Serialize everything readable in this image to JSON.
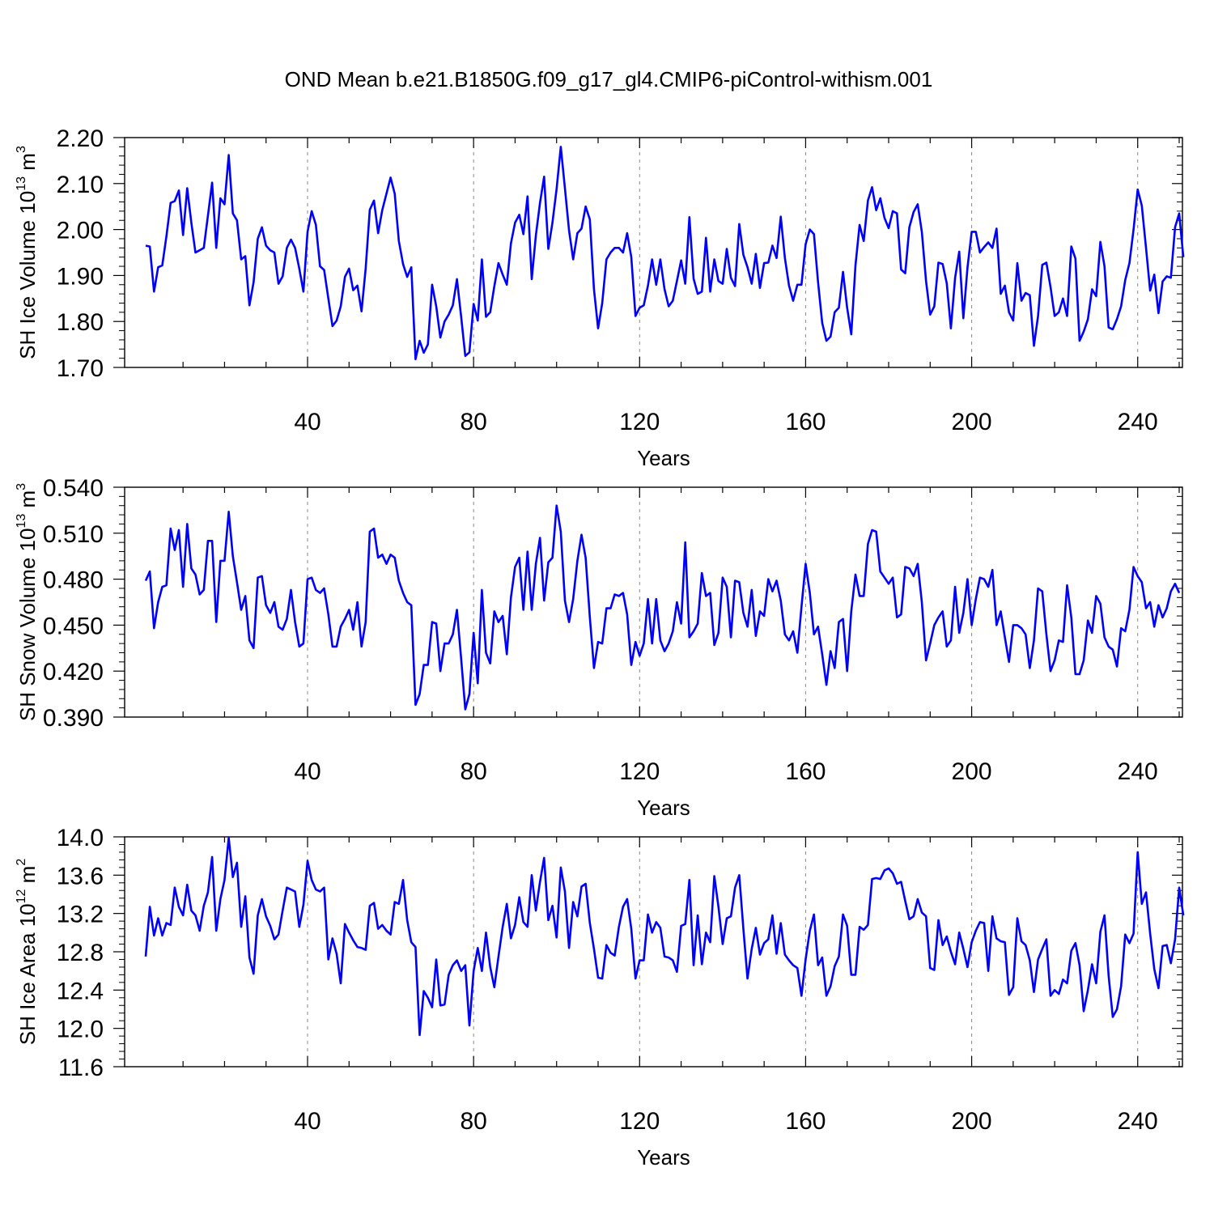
{
  "title": "OND Mean b.e21.B1850G.f09_g17_gl4.CMIP6-piControl-withism.001",
  "colors": {
    "series": "#0000ff",
    "axis": "#000000",
    "grid": "#888888"
  },
  "chart_data": [
    {
      "type": "line",
      "xlabel": "Years",
      "ylabel": {
        "base": "SH Ice Volume 10",
        "exp": "13",
        "unit": " m",
        "unit_exp": "3"
      },
      "xlim": [
        1,
        250
      ],
      "ylim": [
        1.7,
        2.2
      ],
      "xticks": [
        40,
        80,
        120,
        160,
        200,
        240
      ],
      "xtick_labels": [
        "40",
        "80",
        "120",
        "160",
        "200",
        "240"
      ],
      "yticks": [
        1.7,
        1.8,
        1.9,
        2.0,
        2.1,
        2.2
      ],
      "ytick_labels": [
        "1.70",
        "1.80",
        "1.90",
        "2.00",
        "2.10",
        "2.20"
      ],
      "grid_x": [
        40,
        80,
        120,
        160,
        200,
        240
      ],
      "series": [
        {
          "name": "SH Ice Volume",
          "values": [
            1.965,
            1.963,
            1.865,
            1.918,
            1.922,
            1.985,
            2.058,
            2.062,
            2.085,
            1.988,
            2.09,
            2.015,
            1.95,
            1.955,
            1.96,
            2.03,
            2.102,
            1.96,
            2.068,
            2.055,
            2.162,
            2.035,
            2.02,
            1.935,
            1.942,
            1.835,
            1.885,
            1.98,
            2.005,
            1.965,
            1.955,
            1.95,
            1.882,
            1.898,
            1.96,
            1.978,
            1.96,
            1.915,
            1.865,
            1.995,
            2.04,
            2.01,
            1.92,
            1.912,
            1.85,
            1.79,
            1.802,
            1.833,
            1.897,
            1.915,
            1.868,
            1.878,
            1.822,
            1.915,
            2.043,
            2.063,
            1.992,
            2.042,
            2.078,
            2.113,
            2.078,
            1.975,
            1.925,
            1.897,
            1.918,
            1.718,
            1.758,
            1.732,
            1.75,
            1.88,
            1.833,
            1.765,
            1.8,
            1.815,
            1.835,
            1.892,
            1.81,
            1.725,
            1.733,
            1.838,
            1.802,
            1.935,
            1.81,
            1.82,
            1.877,
            1.927,
            1.902,
            1.88,
            1.97,
            2.015,
            2.032,
            1.99,
            2.072,
            1.892,
            1.987,
            2.058,
            2.115,
            1.958,
            2.015,
            2.088,
            2.18,
            2.09,
            1.998,
            1.935,
            1.992,
            2.002,
            2.05,
            2.022,
            1.87,
            1.785,
            1.84,
            1.935,
            1.95,
            1.96,
            1.96,
            1.95,
            1.992,
            1.94,
            1.812,
            1.83,
            1.835,
            1.878,
            1.935,
            1.88,
            1.935,
            1.87,
            1.833,
            1.845,
            1.888,
            1.933,
            1.882,
            2.027,
            1.893,
            1.86,
            1.865,
            1.982,
            1.865,
            1.935,
            1.888,
            1.882,
            1.958,
            1.895,
            1.877,
            2.012,
            1.945,
            1.918,
            1.882,
            1.947,
            1.873,
            1.927,
            1.928,
            1.965,
            1.938,
            2.028,
            1.938,
            1.878,
            1.845,
            1.88,
            1.88,
            1.968,
            2.0,
            1.99,
            1.885,
            1.797,
            1.758,
            1.767,
            1.82,
            1.83,
            1.908,
            1.83,
            1.772,
            1.922,
            2.01,
            1.975,
            2.063,
            2.092,
            2.042,
            2.068,
            2.025,
            2.003,
            2.04,
            2.035,
            1.913,
            1.905,
            2.005,
            2.038,
            2.055,
            1.995,
            1.888,
            1.815,
            1.833,
            1.928,
            1.925,
            1.883,
            1.785,
            1.895,
            1.952,
            1.807,
            1.917,
            1.995,
            1.995,
            1.95,
            1.962,
            1.972,
            1.96,
            2.002,
            1.86,
            1.878,
            1.82,
            1.802,
            1.927,
            1.845,
            1.862,
            1.857,
            1.747,
            1.812,
            1.923,
            1.928,
            1.875,
            1.812,
            1.82,
            1.85,
            1.812,
            1.963,
            1.937,
            1.758,
            1.778,
            1.805,
            1.87,
            1.855,
            1.973,
            1.92,
            1.787,
            1.783,
            1.805,
            1.833,
            1.89,
            1.927,
            2.0,
            2.087,
            2.052,
            1.96,
            1.867,
            1.902,
            1.818,
            1.887,
            1.898,
            1.895,
            2.005,
            2.035,
            1.94
          ]
        }
      ]
    },
    {
      "type": "line",
      "xlabel": "Years",
      "ylabel": {
        "base": "SH Snow Volume 10",
        "exp": "13",
        "unit": " m",
        "unit_exp": "3"
      },
      "xlim": [
        1,
        250
      ],
      "ylim": [
        0.39,
        0.54
      ],
      "xticks": [
        40,
        80,
        120,
        160,
        200,
        240
      ],
      "xtick_labels": [
        "40",
        "80",
        "120",
        "160",
        "200",
        "240"
      ],
      "yticks": [
        0.39,
        0.42,
        0.45,
        0.48,
        0.51,
        0.54
      ],
      "ytick_labels": [
        "0.390",
        "0.420",
        "0.450",
        "0.480",
        "0.510",
        "0.540"
      ],
      "grid_x": [
        40,
        80,
        120,
        160,
        200,
        240
      ],
      "series": [
        {
          "name": "SH Snow Volume",
          "values": [
            0.479,
            0.485,
            0.448,
            0.465,
            0.475,
            0.476,
            0.513,
            0.499,
            0.512,
            0.475,
            0.516,
            0.487,
            0.483,
            0.47,
            0.473,
            0.505,
            0.505,
            0.452,
            0.492,
            0.492,
            0.524,
            0.495,
            0.478,
            0.46,
            0.469,
            0.44,
            0.435,
            0.481,
            0.482,
            0.463,
            0.458,
            0.465,
            0.449,
            0.447,
            0.454,
            0.473,
            0.452,
            0.436,
            0.438,
            0.48,
            0.481,
            0.473,
            0.471,
            0.474,
            0.457,
            0.436,
            0.436,
            0.449,
            0.454,
            0.46,
            0.447,
            0.465,
            0.436,
            0.452,
            0.511,
            0.513,
            0.494,
            0.496,
            0.49,
            0.496,
            0.494,
            0.479,
            0.471,
            0.465,
            0.463,
            0.398,
            0.405,
            0.424,
            0.424,
            0.452,
            0.451,
            0.42,
            0.438,
            0.438,
            0.444,
            0.46,
            0.428,
            0.395,
            0.405,
            0.445,
            0.412,
            0.473,
            0.432,
            0.425,
            0.459,
            0.452,
            0.456,
            0.431,
            0.468,
            0.488,
            0.494,
            0.46,
            0.498,
            0.46,
            0.49,
            0.507,
            0.466,
            0.491,
            0.494,
            0.528,
            0.511,
            0.466,
            0.452,
            0.467,
            0.492,
            0.509,
            0.494,
            0.455,
            0.422,
            0.439,
            0.438,
            0.461,
            0.461,
            0.47,
            0.469,
            0.471,
            0.457,
            0.424,
            0.439,
            0.43,
            0.438,
            0.467,
            0.438,
            0.467,
            0.44,
            0.433,
            0.438,
            0.446,
            0.465,
            0.451,
            0.504,
            0.442,
            0.446,
            0.451,
            0.484,
            0.469,
            0.471,
            0.437,
            0.445,
            0.481,
            0.475,
            0.442,
            0.479,
            0.478,
            0.458,
            0.449,
            0.473,
            0.443,
            0.459,
            0.456,
            0.48,
            0.472,
            0.479,
            0.466,
            0.444,
            0.44,
            0.446,
            0.432,
            0.462,
            0.49,
            0.471,
            0.444,
            0.449,
            0.431,
            0.411,
            0.433,
            0.422,
            0.452,
            0.454,
            0.42,
            0.459,
            0.483,
            0.469,
            0.469,
            0.503,
            0.512,
            0.511,
            0.485,
            0.481,
            0.477,
            0.481,
            0.455,
            0.457,
            0.488,
            0.487,
            0.482,
            0.49,
            0.465,
            0.427,
            0.438,
            0.45,
            0.455,
            0.459,
            0.436,
            0.44,
            0.475,
            0.445,
            0.458,
            0.48,
            0.45,
            0.467,
            0.481,
            0.48,
            0.475,
            0.486,
            0.45,
            0.459,
            0.442,
            0.426,
            0.45,
            0.45,
            0.448,
            0.444,
            0.422,
            0.44,
            0.474,
            0.472,
            0.444,
            0.42,
            0.427,
            0.44,
            0.439,
            0.476,
            0.455,
            0.418,
            0.418,
            0.427,
            0.453,
            0.445,
            0.469,
            0.464,
            0.442,
            0.436,
            0.434,
            0.423,
            0.448,
            0.446,
            0.46,
            0.488,
            0.482,
            0.478,
            0.461,
            0.465,
            0.449,
            0.463,
            0.455,
            0.461,
            0.472,
            0.477,
            0.471
          ]
        }
      ]
    },
    {
      "type": "line",
      "xlabel": "Years",
      "ylabel": {
        "base": "SH Ice Area 10",
        "exp": "12",
        "unit": " m",
        "unit_exp": "2"
      },
      "xlim": [
        1,
        250
      ],
      "ylim": [
        11.6,
        14.0
      ],
      "xticks": [
        40,
        80,
        120,
        160,
        200,
        240
      ],
      "xtick_labels": [
        "40",
        "80",
        "120",
        "160",
        "200",
        "240"
      ],
      "yticks": [
        11.6,
        12.0,
        12.4,
        12.8,
        13.2,
        13.6,
        14.0
      ],
      "ytick_labels": [
        "11.6",
        "12.0",
        "12.4",
        "12.8",
        "13.2",
        "13.6",
        "14.0"
      ],
      "grid_x": [
        40,
        80,
        120,
        160,
        200,
        240
      ],
      "series": [
        {
          "name": "SH Ice Area",
          "values": [
            12.75,
            13.27,
            12.97,
            13.15,
            12.97,
            13.1,
            13.08,
            13.47,
            13.27,
            13.18,
            13.5,
            13.23,
            13.18,
            13.02,
            13.28,
            13.42,
            13.79,
            13.02,
            13.35,
            13.55,
            13.99,
            13.58,
            13.73,
            13.06,
            13.38,
            12.74,
            12.57,
            13.18,
            13.35,
            13.17,
            13.07,
            12.93,
            12.98,
            13.23,
            13.47,
            13.45,
            13.43,
            13.06,
            13.29,
            13.75,
            13.55,
            13.45,
            13.43,
            13.47,
            12.72,
            12.94,
            12.78,
            12.47,
            13.09,
            13.0,
            12.92,
            12.85,
            12.84,
            12.82,
            13.28,
            13.31,
            13.04,
            13.08,
            13.02,
            12.98,
            13.32,
            13.3,
            13.55,
            13.13,
            12.9,
            12.85,
            11.93,
            12.39,
            12.32,
            12.22,
            12.72,
            12.24,
            12.25,
            12.56,
            12.66,
            12.71,
            12.6,
            12.66,
            12.03,
            12.6,
            12.84,
            12.6,
            13.0,
            12.64,
            12.43,
            12.75,
            13.06,
            13.3,
            12.94,
            13.08,
            13.37,
            13.11,
            13.06,
            13.6,
            13.23,
            13.53,
            13.78,
            13.13,
            13.28,
            12.95,
            13.68,
            13.43,
            12.84,
            13.32,
            13.17,
            13.48,
            13.51,
            13.1,
            12.83,
            12.53,
            12.52,
            12.87,
            12.79,
            12.76,
            13.06,
            13.27,
            13.35,
            13.04,
            12.52,
            12.71,
            12.71,
            13.19,
            13.0,
            13.11,
            13.05,
            12.75,
            12.74,
            12.71,
            12.59,
            13.07,
            13.09,
            13.55,
            12.66,
            13.18,
            12.67,
            13.0,
            12.9,
            13.59,
            13.27,
            12.88,
            13.15,
            13.17,
            13.47,
            13.6,
            13.04,
            12.52,
            12.83,
            13.05,
            12.77,
            12.89,
            12.93,
            13.18,
            12.78,
            13.1,
            12.77,
            12.71,
            12.66,
            12.63,
            12.34,
            12.72,
            13.02,
            13.19,
            12.66,
            12.74,
            12.34,
            12.44,
            12.65,
            12.75,
            13.19,
            13.07,
            12.56,
            12.56,
            13.06,
            13.03,
            13.08,
            13.56,
            13.57,
            13.56,
            13.65,
            13.67,
            13.62,
            13.51,
            13.53,
            13.33,
            13.14,
            13.17,
            13.35,
            13.21,
            13.17,
            12.63,
            12.61,
            13.13,
            12.87,
            12.96,
            12.8,
            12.67,
            13.0,
            12.83,
            12.64,
            12.9,
            13.02,
            13.11,
            13.1,
            12.6,
            13.17,
            12.94,
            12.91,
            12.9,
            12.35,
            12.43,
            13.15,
            12.91,
            12.87,
            12.71,
            12.38,
            12.72,
            12.83,
            12.93,
            12.34,
            12.4,
            12.36,
            12.51,
            12.47,
            12.81,
            12.89,
            12.66,
            12.18,
            12.4,
            12.67,
            12.47,
            13.01,
            13.18,
            12.55,
            12.12,
            12.2,
            12.44,
            12.98,
            12.89,
            12.99,
            13.84,
            13.3,
            13.42,
            12.99,
            12.62,
            12.42,
            12.86,
            12.87,
            12.68,
            12.93,
            13.47,
            13.18
          ]
        }
      ]
    }
  ]
}
